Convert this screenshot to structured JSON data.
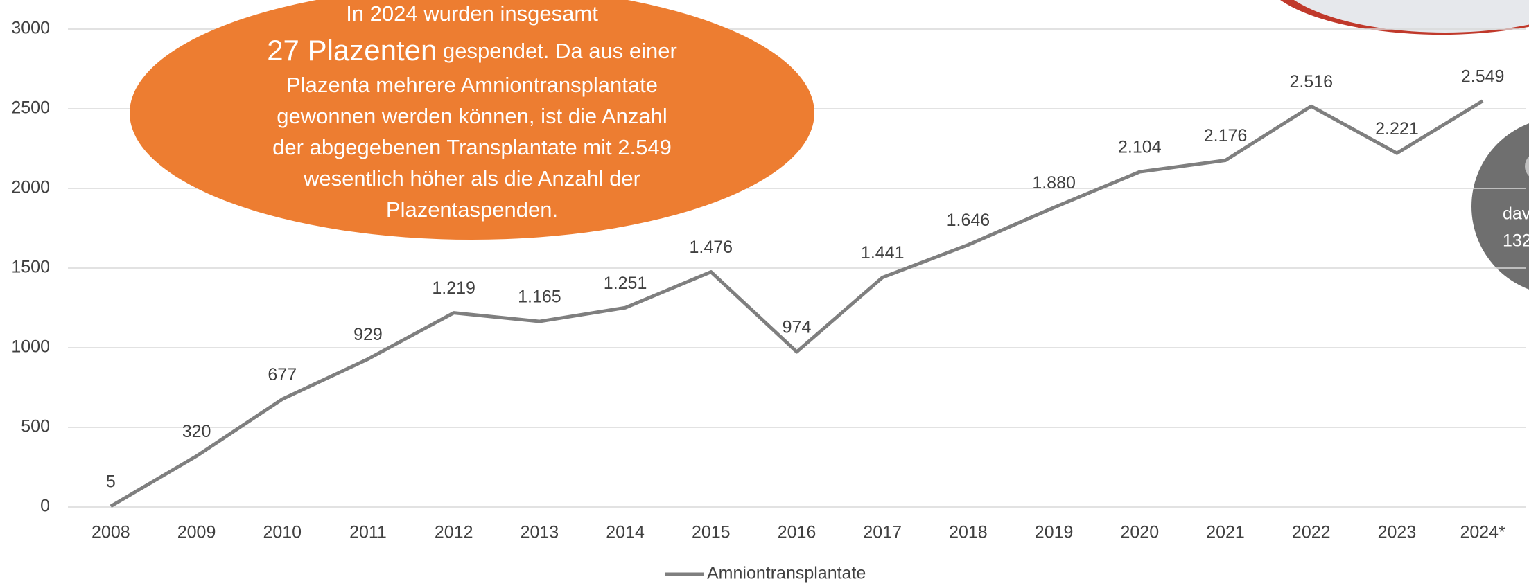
{
  "chart_data": {
    "type": "line",
    "categories": [
      "2008",
      "2009",
      "2010",
      "2011",
      "2012",
      "2013",
      "2014",
      "2015",
      "2016",
      "2017",
      "2018",
      "2019",
      "2020",
      "2021",
      "2022",
      "2023",
      "2024*"
    ],
    "series": [
      {
        "name": "Amniontransplantate",
        "color": "#7f7f7f",
        "values": [
          5,
          320,
          677,
          929,
          1219,
          1165,
          1251,
          1476,
          974,
          1441,
          1646,
          1880,
          2104,
          2176,
          2516,
          2221,
          2549
        ],
        "value_labels": [
          "5",
          "320",
          "677",
          "929",
          "1.219",
          "1.165",
          "1.251",
          "1.476",
          "974",
          "1.441",
          "1.646",
          "1.880",
          "2.104",
          "2.176",
          "2.516",
          "2.221",
          "2.549"
        ]
      }
    ],
    "ylim": [
      0,
      3000
    ],
    "yticks": [
      0,
      500,
      1000,
      1500,
      2000,
      2500,
      3000
    ],
    "grid": true,
    "legend": "bottom",
    "annotation": {
      "line1": "In 2024 wurden insgesamt",
      "highlight": "27 Plazenten",
      "line2": " gespendet. Da aus einer",
      "lines": [
        "Plazenta mehrere Amniontransplantate",
        "gewonnen werden können, ist die Anzahl",
        "der abgegebenen Transplantate mit 2.549",
        "wesentlich höher als die Anzahl der",
        "Plazentaspenden."
      ],
      "color": "#ed7d31"
    },
    "side_note": [
      "dav",
      "132"
    ]
  }
}
